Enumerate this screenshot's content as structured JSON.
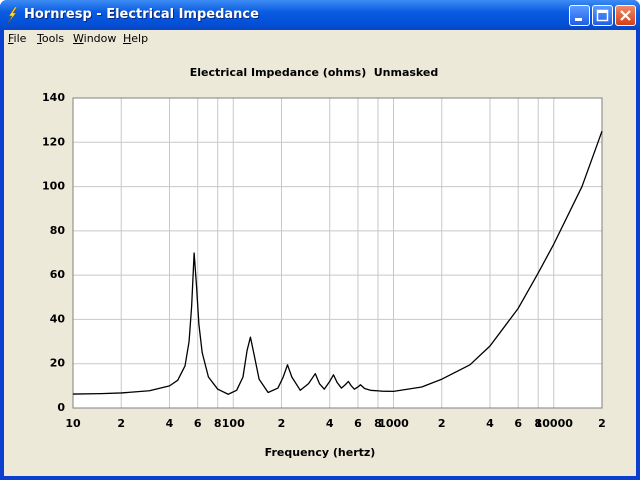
{
  "window": {
    "title": "Hornresp - Electrical Impedance"
  },
  "menu": [
    "File",
    "Tools",
    "Window",
    "Help"
  ],
  "chart_data": {
    "type": "line",
    "title": "Electrical Impedance (ohms)",
    "subtitle": "Unmasked",
    "x_label": "Frequency (hertz)",
    "x_scale": "log",
    "grid": true,
    "xlim": [
      10,
      20000
    ],
    "ylim": [
      0,
      140
    ],
    "yticks": [
      0,
      20,
      40,
      60,
      80,
      100,
      120,
      140
    ],
    "xticks": [
      10,
      {
        "value": 20,
        "label": "2"
      },
      {
        "value": 40,
        "label": "4"
      },
      {
        "value": 60,
        "label": "6"
      },
      {
        "value": 80,
        "label": "8"
      },
      100,
      {
        "value": 200,
        "label": "2"
      },
      {
        "value": 400,
        "label": "4"
      },
      {
        "value": 600,
        "label": "6"
      },
      {
        "value": 800,
        "label": "8"
      },
      1000,
      {
        "value": 2000,
        "label": "2"
      },
      {
        "value": 4000,
        "label": "4"
      },
      {
        "value": 6000,
        "label": "6"
      },
      {
        "value": 8000,
        "label": "8"
      },
      10000,
      {
        "value": 20000,
        "label": "2"
      }
    ],
    "color": "#000000",
    "x": [
      10,
      15,
      20,
      30,
      40,
      45,
      50,
      53,
      55,
      57,
      59,
      61,
      64,
      70,
      80,
      93,
      105,
      115,
      122,
      128,
      135,
      145,
      165,
      190,
      205,
      218,
      232,
      262,
      295,
      325,
      345,
      370,
      400,
      422,
      445,
      473,
      500,
      523,
      545,
      570,
      600,
      622,
      660,
      718,
      850,
      1000,
      1500,
      2000,
      3000,
      4000,
      6000,
      8000,
      10000,
      15000,
      20000
    ],
    "values": [
      6.3,
      6.5,
      6.8,
      7.8,
      10,
      12.5,
      19,
      30,
      46,
      70,
      55,
      38,
      25,
      14,
      8.5,
      6.2,
      8,
      14,
      26,
      32,
      24,
      13,
      7,
      9,
      14,
      19.5,
      14,
      8,
      11,
      15.5,
      11,
      8.5,
      12,
      15,
      11.5,
      9,
      10.5,
      12,
      10,
      8.5,
      9.5,
      10.5,
      8.8,
      8,
      7.6,
      7.5,
      9.5,
      13,
      19.5,
      28,
      45,
      61,
      74,
      100,
      125
    ]
  }
}
